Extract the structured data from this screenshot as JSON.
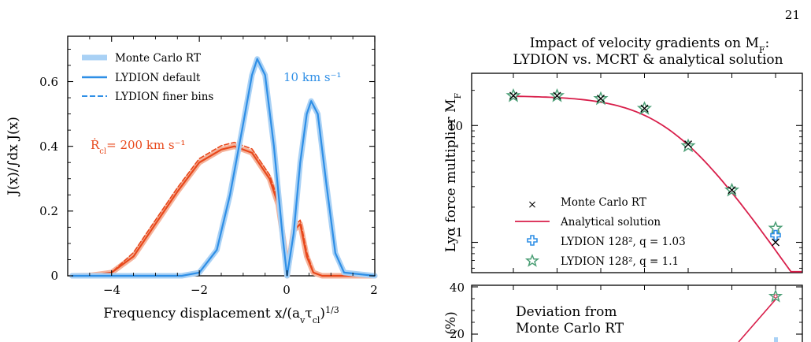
{
  "page": {
    "number": "21"
  },
  "left_chart": {
    "chart_data": {
      "type": "line",
      "xlabel": "Frequency displacement x/(a_v τ_cl)^1/3",
      "ylabel": "J(x)/∫dx J(x)",
      "xlim": [
        -5,
        2
      ],
      "ylim": [
        0,
        0.74
      ],
      "x_ticks": [
        "−4",
        "−2",
        "0",
        "2"
      ],
      "y_ticks": [
        "0",
        "0.2",
        "0.4",
        "0.6"
      ],
      "legend": [
        "Monte Carlo RT",
        "LYDION default",
        "LYDION finer bins"
      ],
      "annotations": {
        "blue": "10 km s⁻¹",
        "orange_prefix": "Ṙ",
        "orange_sub": "cl",
        "orange_suffix": "= 200 km s⁻¹"
      },
      "colors": {
        "blue": "#2f8fe6",
        "blue_light": "#a9d1f5",
        "orange": "#e8481b",
        "orange_light": "#f5b29a"
      },
      "series": [
        {
          "name": "LYDION default",
          "x": [
            -4.9,
            -4.5,
            -4.0,
            -3.5,
            -3.0,
            -2.5,
            -2.0,
            -1.5,
            -1.2,
            -0.8,
            -0.4,
            -0.2,
            -0.05,
            0,
            0.15,
            0.3,
            0.45,
            0.6,
            0.8,
            1.1,
            1.4,
            2.0
          ],
          "y": [
            0,
            0.001,
            0.01,
            0.06,
            0.16,
            0.26,
            0.35,
            0.39,
            0.4,
            0.38,
            0.3,
            0.22,
            0.08,
            0,
            0.14,
            0.16,
            0.06,
            0.01,
            0,
            0,
            0,
            0
          ]
        },
        {
          "name": "10 km s⁻¹ profile",
          "x": [
            -4.9,
            -2.4,
            -2.0,
            -1.6,
            -1.3,
            -1.0,
            -0.8,
            -0.68,
            -0.5,
            -0.3,
            -0.1,
            0,
            0.15,
            0.3,
            0.45,
            0.55,
            0.7,
            0.9,
            1.1,
            1.3,
            2.0
          ],
          "y": [
            0,
            0,
            0.01,
            0.08,
            0.25,
            0.47,
            0.62,
            0.67,
            0.62,
            0.4,
            0.12,
            0,
            0.13,
            0.35,
            0.5,
            0.54,
            0.5,
            0.28,
            0.07,
            0.01,
            0
          ]
        }
      ]
    }
  },
  "right_chart": {
    "title_line1": "Impact of velocity gradients on M",
    "title_line1_sub": "F",
    "title_line1_suffix": ":",
    "title_line2": "LYDION vs. MCRT & analytical solution",
    "chart_data": {
      "type": "scatter",
      "ylabel": "Lyα force multiplier M",
      "ylabel_sub": "F",
      "yscale": "log",
      "ylim": [
        0.55,
        28
      ],
      "y_ticks": [
        "1",
        "10"
      ],
      "legend": [
        "Monte Carlo RT",
        "Analytical solution",
        "LYDION 128², q = 1.03",
        "LYDION 128², q = 1.1"
      ],
      "colors": {
        "analytical": "#d81e4a",
        "plus": "#2f8fe6",
        "star": "#4c9f76",
        "cross": "#000000"
      },
      "points": [
        {
          "mc": 18.0,
          "star": 18.0
        },
        {
          "mc": 18.0,
          "star": 18.0
        },
        {
          "mc": 17.0,
          "star": 17.0
        },
        {
          "mc": 14.0,
          "star": 14.0
        },
        {
          "mc": 6.9,
          "star": 6.7
        },
        {
          "mc": 2.8,
          "star": 2.8
        },
        {
          "mc": 1.0,
          "star": 1.32,
          "plus": 1.15
        }
      ]
    },
    "lower_panel": {
      "annotation_line1": "Deviation from",
      "annotation_line2": "Monte Carlo RT",
      "y_ticks": [
        "20",
        "40"
      ],
      "ylabel_fragment": "(%)"
    }
  }
}
